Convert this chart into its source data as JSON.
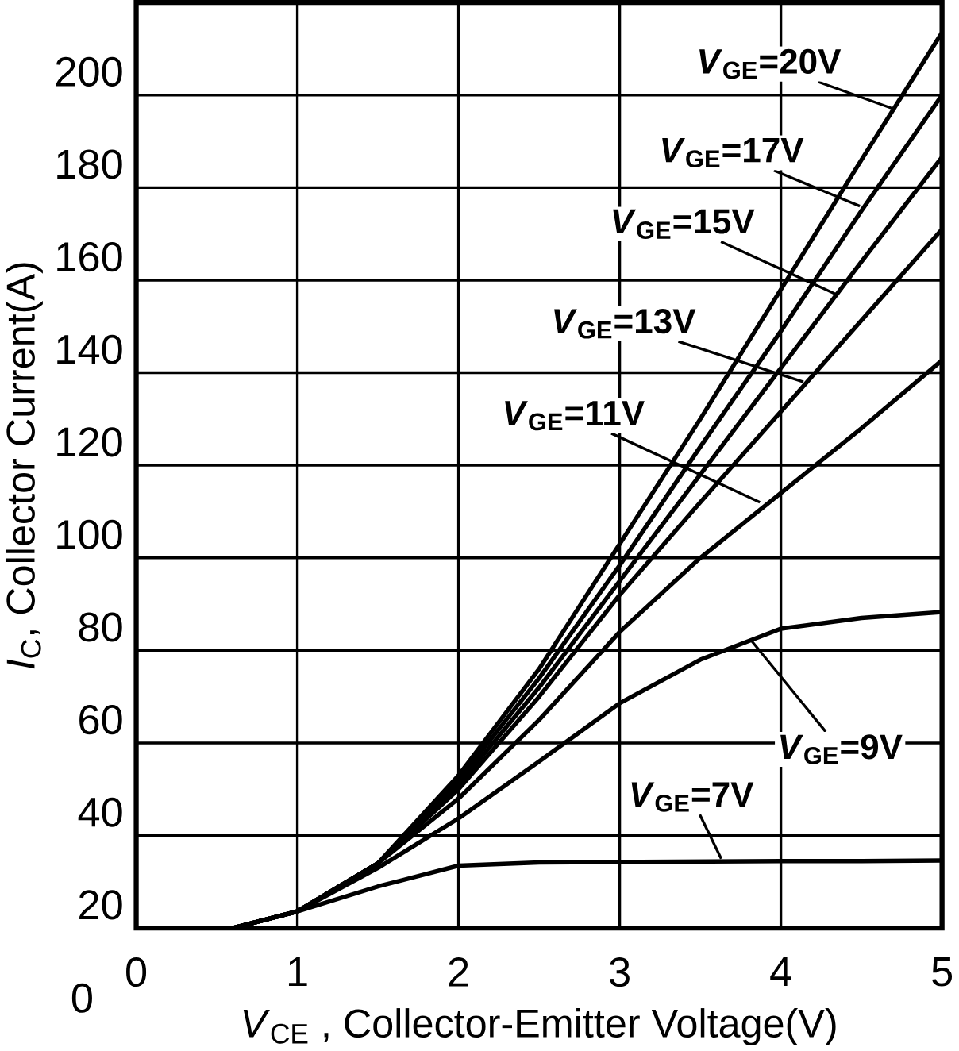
{
  "chart_data": {
    "type": "line",
    "xlabel": "*V*$_{CE}$ , Collector-Emitter Voltage(V)",
    "ylabel": "*I*$_{C}$, Collector Current(A)",
    "x": [
      0.6,
      1,
      1.5,
      2,
      2.5,
      3,
      3.5,
      4,
      4.5,
      5
    ],
    "series": [
      {
        "color": "#000000",
        "values": [
          20,
          23.6,
          34,
          53,
          76,
          103,
          130,
          158,
          186,
          213.5
        ]
      },
      {
        "color": "#000000",
        "values": [
          20,
          23.6,
          34,
          52,
          74,
          98.4,
          124,
          149,
          175,
          200
        ]
      },
      {
        "color": "#000000",
        "values": [
          20,
          23.6,
          34,
          51,
          72,
          95,
          118,
          141,
          164,
          186.6
        ]
      },
      {
        "color": "#000000",
        "values": [
          20,
          23.6,
          34,
          50,
          70,
          92,
          112,
          131.6,
          151.3,
          171
        ]
      },
      {
        "color": "#000000",
        "values": [
          20,
          23.6,
          34,
          48,
          65,
          84,
          100,
          114,
          128,
          142.7
        ]
      },
      {
        "color": "#000000",
        "values": [
          20,
          23.6,
          33,
          43.7,
          56,
          68.6,
          78,
          84.7,
          87,
          88.3
        ]
      },
      {
        "color": "#000000",
        "values": [
          20,
          23.6,
          29,
          33.5,
          34.2,
          34.3,
          34.4,
          34.5,
          34.5,
          34.6
        ]
      }
    ],
    "annotations": [
      {
        "text": "*V*$_{GE}$=20V",
        "x": 4.7,
        "y": 197
      },
      {
        "text": "*V*$_{GE}$=17V",
        "x": 4.49,
        "y": 176
      },
      {
        "text": "*V*$_{GE}$=15V",
        "x": 4.34,
        "y": 157
      },
      {
        "text": "*V*$_{GE}$=13V",
        "x": 4.14,
        "y": 138
      },
      {
        "text": "*V*$_{GE}$=11V",
        "x": 3.87,
        "y": 112
      },
      {
        "text": "*V*$_{GE}$=9V",
        "x": 3.82,
        "y": 82
      },
      {
        "text": "*V*$_{GE}$=7V",
        "x": 3.63,
        "y": 35
      },
      "0"
    ],
    "xlim": [
      0,
      5
    ],
    "ylim": [
      20,
      220
    ],
    "xticks": [
      0,
      1,
      2,
      3,
      4,
      5
    ],
    "yticks": [
      20,
      40,
      60,
      80,
      100,
      120,
      140,
      160,
      180,
      200
    ],
    "grid": true,
    "marker": "none",
    "line_style": "solid"
  }
}
